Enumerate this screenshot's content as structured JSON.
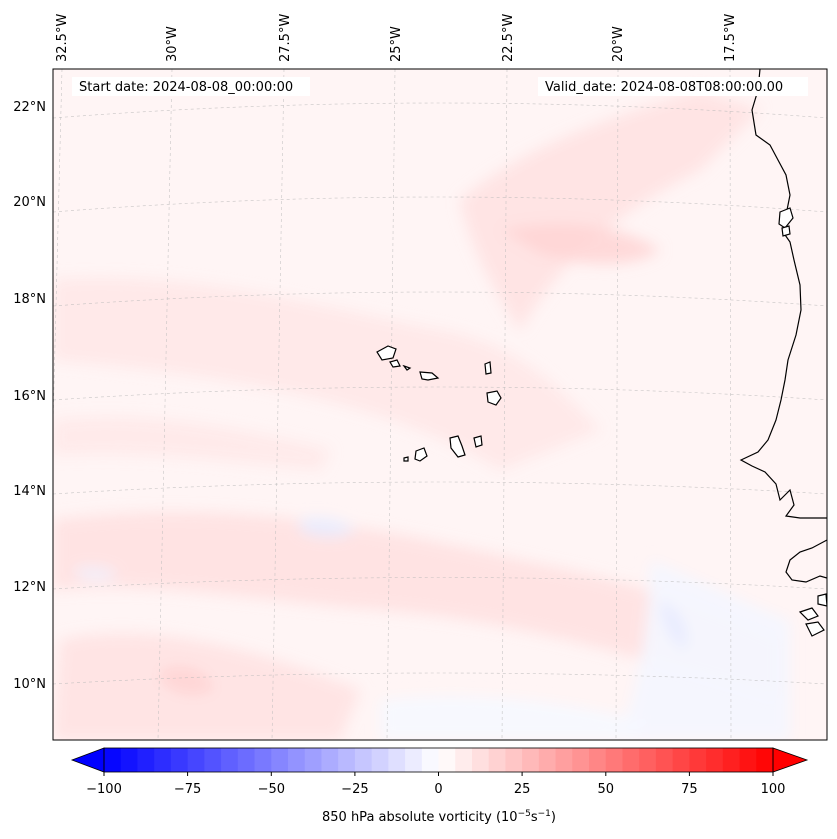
{
  "map": {
    "start_date": "Start date: 2024-08-08_00:00:00",
    "valid_date": "Valid_date: 2024-08-08T08:00:00.00",
    "lon_labels": [
      "32.5°W",
      "30°W",
      "27.5°W",
      "25°W",
      "22.5°W",
      "20°W",
      "17.5°W"
    ],
    "lat_labels": [
      "22°N",
      "20°N",
      "18°N",
      "16°N",
      "14°N",
      "12°N",
      "10°N"
    ],
    "variable": "850 hPa absolute vorticity",
    "units_prefix": "(10",
    "units_exp1": "−5",
    "units_mid": "s",
    "units_exp2": "−1",
    "units_suffix": ")"
  },
  "colorbar": {
    "ticks": [
      "−100",
      "−75",
      "−50",
      "−25",
      "0",
      "25",
      "50",
      "75",
      "100"
    ],
    "min_color": "#0000ff",
    "mid_color": "#ffffff",
    "max_color": "#ff0000"
  }
}
